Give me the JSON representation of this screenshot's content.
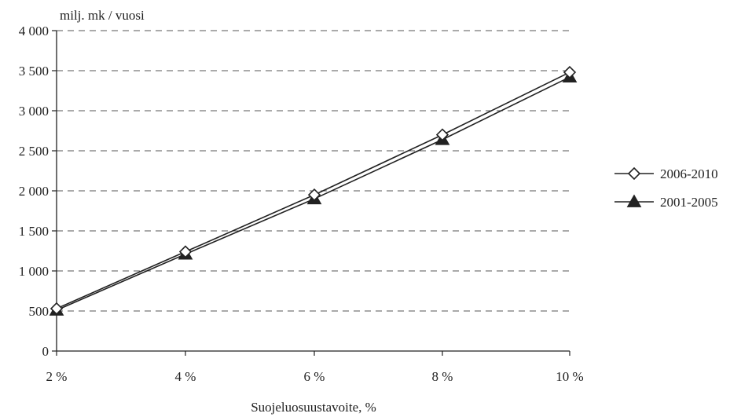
{
  "chart_data": {
    "type": "line",
    "title": "",
    "ylabel": "milj. mk / vuosi",
    "xlabel": "Suojeluosuustavoite, %",
    "categories": [
      "2 %",
      "4 %",
      "6 %",
      "8 %",
      "10 %"
    ],
    "yticks": [
      0,
      500,
      1000,
      1500,
      2000,
      2500,
      3000,
      3500,
      4000
    ],
    "ytick_labels": [
      "0",
      "500",
      "1 000",
      "1 500",
      "2 000",
      "2 500",
      "3 000",
      "3 500",
      "4 000"
    ],
    "ylim": [
      0,
      4000
    ],
    "grid": "horizontal-dashed",
    "legend_position": "right",
    "series": [
      {
        "name": "2006-2010",
        "marker": "diamond-open",
        "values": [
          530,
          1240,
          1950,
          2700,
          3480
        ]
      },
      {
        "name": "2001-2005",
        "marker": "triangle-filled",
        "values": [
          510,
          1210,
          1900,
          2640,
          3420
        ]
      }
    ],
    "colors": {
      "line": "#222222",
      "grid": "#555555",
      "axis": "#222222"
    }
  }
}
